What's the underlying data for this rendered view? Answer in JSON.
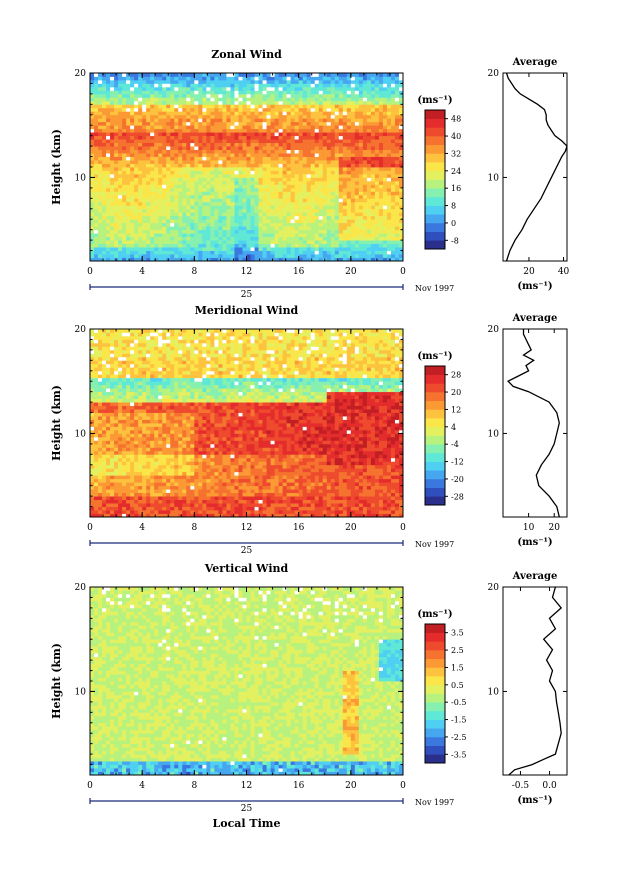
{
  "chart_data": [
    {
      "type": "heatmap",
      "title": "Zonal Wind",
      "ylabel": "Height (km)",
      "xlabel": "",
      "x_ticks": [
        "0",
        "4",
        "8",
        "12",
        "16",
        "20",
        "0"
      ],
      "y_ticks": [
        "10",
        "20"
      ],
      "xlim": [
        0,
        24
      ],
      "ylim": [
        2,
        20
      ],
      "date_label": "25",
      "month_label": "Nov 1997",
      "colorbar_unit": "(ms⁻¹)",
      "colorbar_ticks": [
        "48",
        "40",
        "32",
        "24",
        "16",
        "8",
        "0",
        "-8"
      ],
      "colorbar_range": [
        -12,
        52
      ],
      "colors": [
        "#2b2f8c",
        "#2f4fbf",
        "#3a78e0",
        "#47a6f0",
        "#4fd0f2",
        "#5fe8d6",
        "#86f0b0",
        "#b8f27e",
        "#e3f060",
        "#fbe64a",
        "#fdc23e",
        "#fb9a34",
        "#f5732f",
        "#ee4a2d",
        "#e42c2c",
        "#c21f24"
      ],
      "profile": {
        "title": "Average",
        "xlabel": "(ms⁻¹)",
        "x_ticks": [
          "20",
          "40"
        ],
        "y_ticks": [
          "10",
          "20"
        ],
        "xlim": [
          5,
          42
        ],
        "height": [
          2,
          3,
          4,
          5,
          6,
          7,
          8,
          9,
          10,
          11,
          12,
          12.5,
          13,
          13.5,
          14,
          14.5,
          15,
          15.5,
          16,
          16.5,
          17,
          17.5,
          18,
          18.5,
          19,
          19.5,
          20
        ],
        "values": [
          7,
          9,
          12,
          16,
          19,
          23,
          27,
          30,
          33,
          36,
          39,
          41,
          42,
          39,
          35,
          33,
          31,
          30,
          30,
          29,
          25,
          20,
          15,
          12,
          10,
          8,
          7
        ]
      }
    },
    {
      "type": "heatmap",
      "title": "Meridional Wind",
      "ylabel": "Height (km)",
      "xlabel": "",
      "x_ticks": [
        "0",
        "4",
        "8",
        "12",
        "16",
        "20",
        "0"
      ],
      "y_ticks": [
        "10",
        "20"
      ],
      "xlim": [
        0,
        24
      ],
      "ylim": [
        2,
        20
      ],
      "date_label": "25",
      "month_label": "Nov 1997",
      "colorbar_unit": "(ms⁻¹)",
      "colorbar_ticks": [
        "28",
        "20",
        "12",
        "4",
        "-4",
        "-12",
        "-20",
        "-28"
      ],
      "colorbar_range": [
        -32,
        32
      ],
      "colors": [
        "#2b2f8c",
        "#2f4fbf",
        "#3a78e0",
        "#47a6f0",
        "#4fd0f2",
        "#5fe8d6",
        "#86f0b0",
        "#b8f27e",
        "#e3f060",
        "#fbe64a",
        "#fdc23e",
        "#fb9a34",
        "#f5732f",
        "#ee4a2d",
        "#e42c2c",
        "#c21f24"
      ],
      "profile": {
        "title": "Average",
        "xlabel": "(ms⁻¹)",
        "x_ticks": [
          "10",
          "20"
        ],
        "y_ticks": [
          "10",
          "20"
        ],
        "xlim": [
          0,
          25
        ],
        "height": [
          2,
          3,
          4,
          5,
          6,
          7,
          8,
          9,
          10,
          11,
          12,
          13,
          14,
          14.5,
          15,
          15.5,
          16,
          16.5,
          17,
          17.5,
          18,
          18.5,
          19,
          19.5,
          20
        ],
        "values": [
          22,
          21,
          18,
          14,
          13,
          15,
          18,
          20,
          21,
          22,
          21,
          18,
          10,
          4,
          2,
          6,
          10,
          9,
          12,
          8,
          11,
          10,
          9,
          8,
          8
        ]
      }
    },
    {
      "type": "heatmap",
      "title": "Vertical Wind",
      "ylabel": "Height (km)",
      "xlabel": "Local Time",
      "x_ticks": [
        "0",
        "4",
        "8",
        "12",
        "16",
        "20",
        "0"
      ],
      "y_ticks": [
        "10",
        "20"
      ],
      "xlim": [
        0,
        24
      ],
      "ylim": [
        2,
        20
      ],
      "date_label": "25",
      "month_label": "Nov 1997",
      "colorbar_unit": "(ms⁻¹)",
      "colorbar_ticks": [
        "3.5",
        "2.5",
        "1.5",
        "0.5",
        "-0.5",
        "-1.5",
        "-2.5",
        "-3.5"
      ],
      "colorbar_range": [
        -4,
        4
      ],
      "colors": [
        "#2b2f8c",
        "#2f4fbf",
        "#3a78e0",
        "#47a6f0",
        "#4fd0f2",
        "#5fe8d6",
        "#86f0b0",
        "#b8f27e",
        "#e3f060",
        "#fbe64a",
        "#fdc23e",
        "#fb9a34",
        "#f5732f",
        "#ee4a2d",
        "#e42c2c",
        "#c21f24"
      ],
      "profile": {
        "title": "Average",
        "xlabel": "(ms⁻¹)",
        "x_ticks": [
          "-0.5",
          "0.0"
        ],
        "y_ticks": [
          "10",
          "20"
        ],
        "xlim": [
          -0.8,
          0.3
        ],
        "height": [
          2,
          2.5,
          3,
          3.5,
          4,
          5,
          6,
          7,
          8,
          9,
          10,
          11,
          12,
          13,
          14,
          15,
          16,
          17,
          18,
          19,
          20
        ],
        "values": [
          -0.7,
          -0.6,
          -0.3,
          -0.1,
          0.1,
          0.15,
          0.2,
          0.18,
          0.15,
          0.12,
          0.1,
          0.0,
          0.05,
          -0.05,
          0.05,
          -0.1,
          0.1,
          0.0,
          0.2,
          0.05,
          0.1
        ]
      }
    }
  ]
}
